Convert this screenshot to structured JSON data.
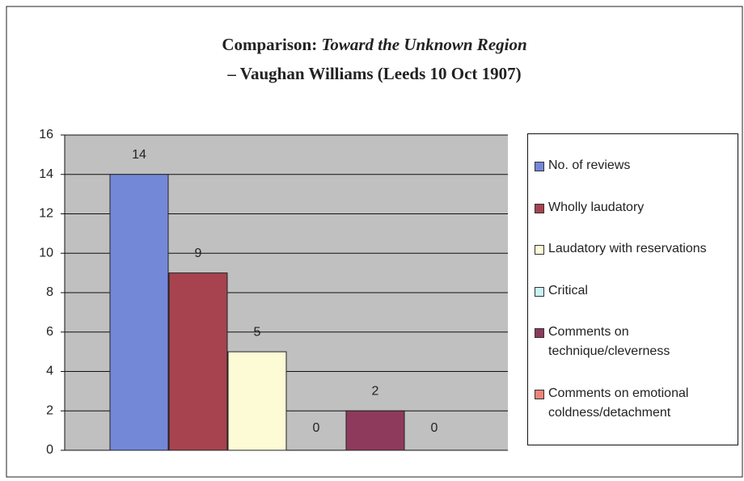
{
  "chart_data": {
    "type": "bar",
    "title": [
      {
        "text": "Comparison:"
      },
      {
        "text": "Toward the Unknown Region",
        "italic": true
      }
    ],
    "subtitle": "– Vaughan Williams (Leeds 10 Oct 1907)",
    "categories": [
      null
    ],
    "series": [
      {
        "name": "No. of reviews",
        "color": "#7488d8",
        "values": [
          14
        ]
      },
      {
        "name": "Wholly laudatory",
        "color": "#a6434f",
        "values": [
          9
        ]
      },
      {
        "name": "Laudatory with reservations",
        "color": "#fdfbd6",
        "values": [
          5
        ]
      },
      {
        "name": "Critical",
        "color": "#c9f2f6",
        "values": [
          0
        ]
      },
      {
        "name": "Comments on technique/cleverness",
        "color": "#8e3a5c",
        "values": [
          2
        ]
      },
      {
        "name": "Comments on emotional coldness/detachment",
        "color": "#ee8476",
        "values": [
          0
        ]
      }
    ],
    "ylim": [
      0,
      16
    ],
    "yticks": [
      0,
      2,
      4,
      6,
      8,
      10,
      12,
      14,
      16
    ],
    "grid": true,
    "legend": "right"
  }
}
